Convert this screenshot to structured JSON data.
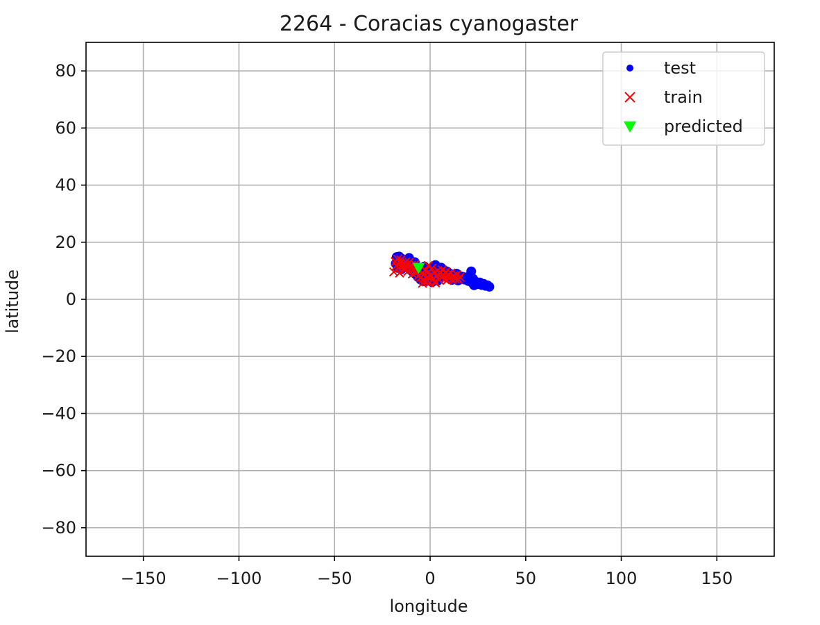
{
  "chart_data": {
    "type": "scatter",
    "title": "2264 - Coracias cyanogaster",
    "xlabel": "longitude",
    "ylabel": "latitude",
    "xlim": [
      -180,
      180
    ],
    "ylim": [
      -90,
      90
    ],
    "xticks": [
      -150,
      -100,
      -50,
      0,
      50,
      100,
      150
    ],
    "yticks": [
      80,
      60,
      40,
      20,
      0,
      -20,
      -40,
      -60,
      -80
    ],
    "xtick_labels": [
      "−150",
      "−100",
      "−50",
      "0",
      "50",
      "100",
      "150"
    ],
    "ytick_labels": [
      "80",
      "60",
      "40",
      "20",
      "0",
      "−20",
      "−40",
      "−60",
      "−80"
    ],
    "grid": true,
    "legend_position": "top-right",
    "series": [
      {
        "name": "test",
        "marker": "dot",
        "color": "#0000ff",
        "points": [
          [
            -17.5,
            14.8
          ],
          [
            -16.8,
            13.9
          ],
          [
            -16.2,
            15.0
          ],
          [
            -15.5,
            12.6
          ],
          [
            -14.8,
            14.2
          ],
          [
            -14.1,
            13.3
          ],
          [
            -13.4,
            11.9
          ],
          [
            -12.7,
            12.8
          ],
          [
            -12.0,
            11.2
          ],
          [
            -11.3,
            13.6
          ],
          [
            -10.6,
            10.8
          ],
          [
            -9.9,
            12.1
          ],
          [
            -9.2,
            9.7
          ],
          [
            -8.5,
            11.0
          ],
          [
            -7.8,
            8.9
          ],
          [
            -7.1,
            10.4
          ],
          [
            -6.4,
            7.8
          ],
          [
            -5.7,
            9.2
          ],
          [
            -5.0,
            6.9
          ],
          [
            -4.3,
            8.5
          ],
          [
            -3.6,
            6.3
          ],
          [
            -2.9,
            7.9
          ],
          [
            -2.2,
            9.8
          ],
          [
            -1.5,
            6.6
          ],
          [
            -0.8,
            8.3
          ],
          [
            0.0,
            10.6
          ],
          [
            0.7,
            7.4
          ],
          [
            1.4,
            11.3
          ],
          [
            2.1,
            9.1
          ],
          [
            2.8,
            12.0
          ],
          [
            3.5,
            8.6
          ],
          [
            4.2,
            10.4
          ],
          [
            5.0,
            7.2
          ],
          [
            5.8,
            11.1
          ],
          [
            6.6,
            9.3
          ],
          [
            7.4,
            10.2
          ],
          [
            8.2,
            8.0
          ],
          [
            9.0,
            9.7
          ],
          [
            9.8,
            7.5
          ],
          [
            10.6,
            8.9
          ],
          [
            11.4,
            6.8
          ],
          [
            12.2,
            8.4
          ],
          [
            13.0,
            7.1
          ],
          [
            13.8,
            9.0
          ],
          [
            14.6,
            6.6
          ],
          [
            15.4,
            8.1
          ],
          [
            16.2,
            7.0
          ],
          [
            17.0,
            7.9
          ],
          [
            18.0,
            6.9
          ],
          [
            19.0,
            7.7
          ],
          [
            20.0,
            6.4
          ],
          [
            21.0,
            8.3
          ],
          [
            21.5,
            9.8
          ],
          [
            22.0,
            5.8
          ],
          [
            22.5,
            7.2
          ],
          [
            23.0,
            4.9
          ],
          [
            24.0,
            6.1
          ],
          [
            25.0,
            5.3
          ],
          [
            26.0,
            5.9
          ],
          [
            27.0,
            5.0
          ],
          [
            28.0,
            5.4
          ],
          [
            29.0,
            4.7
          ],
          [
            30.0,
            4.9
          ],
          [
            31.0,
            4.4
          ],
          [
            -18.0,
            12.5
          ],
          [
            -17.0,
            11.0
          ],
          [
            -15.0,
            10.5
          ],
          [
            -11.0,
            14.5
          ],
          [
            -8.0,
            13.0
          ],
          [
            -3.0,
            11.5
          ],
          [
            1.0,
            6.0
          ],
          [
            4.0,
            6.5
          ]
        ]
      },
      {
        "name": "train",
        "marker": "x",
        "color": "#ff0000",
        "points": [
          [
            -18.2,
            13.2
          ],
          [
            -17.6,
            11.8
          ],
          [
            -17.0,
            14.1
          ],
          [
            -16.4,
            10.9
          ],
          [
            -15.8,
            12.7
          ],
          [
            -15.2,
            13.8
          ],
          [
            -14.6,
            11.1
          ],
          [
            -14.0,
            12.4
          ],
          [
            -13.4,
            10.3
          ],
          [
            -12.8,
            13.1
          ],
          [
            -12.2,
            11.7
          ],
          [
            -11.6,
            9.8
          ],
          [
            -11.0,
            12.9
          ],
          [
            -10.4,
            10.6
          ],
          [
            -9.8,
            11.9
          ],
          [
            -9.2,
            8.9
          ],
          [
            -8.6,
            10.5
          ],
          [
            -8.0,
            12.2
          ],
          [
            -7.4,
            9.4
          ],
          [
            -6.8,
            11.3
          ],
          [
            -6.2,
            8.2
          ],
          [
            -5.6,
            10.0
          ],
          [
            -5.0,
            7.6
          ],
          [
            -4.4,
            9.1
          ],
          [
            -3.8,
            6.8
          ],
          [
            -3.2,
            8.7
          ],
          [
            -2.6,
            10.1
          ],
          [
            -2.0,
            6.1
          ],
          [
            -1.4,
            7.9
          ],
          [
            -0.8,
            9.5
          ],
          [
            -0.2,
            5.8
          ],
          [
            0.4,
            8.4
          ],
          [
            1.0,
            10.9
          ],
          [
            1.6,
            7.1
          ],
          [
            2.2,
            9.3
          ],
          [
            2.8,
            5.7
          ],
          [
            3.4,
            8.2
          ],
          [
            4.0,
            10.0
          ],
          [
            4.6,
            6.9
          ],
          [
            5.2,
            9.1
          ],
          [
            5.8,
            7.6
          ],
          [
            6.4,
            10.3
          ],
          [
            7.0,
            8.5
          ],
          [
            7.6,
            7.0
          ],
          [
            8.2,
            9.6
          ],
          [
            8.8,
            6.6
          ],
          [
            9.4,
            8.8
          ],
          [
            10.0,
            7.4
          ],
          [
            10.8,
            9.2
          ],
          [
            11.6,
            6.9
          ],
          [
            12.4,
            8.3
          ],
          [
            13.2,
            7.1
          ],
          [
            14.0,
            8.6
          ],
          [
            14.8,
            6.9
          ],
          [
            15.6,
            7.8
          ],
          [
            -19.0,
            9.6
          ],
          [
            -16.0,
            9.2
          ],
          [
            -4.0,
            5.6
          ],
          [
            2.5,
            6.2
          ],
          [
            -1.0,
            11.8
          ]
        ]
      },
      {
        "name": "predicted",
        "marker": "triangle-down",
        "color": "#00ff00",
        "points": [
          [
            -6.0,
            11.0
          ]
        ]
      }
    ]
  }
}
